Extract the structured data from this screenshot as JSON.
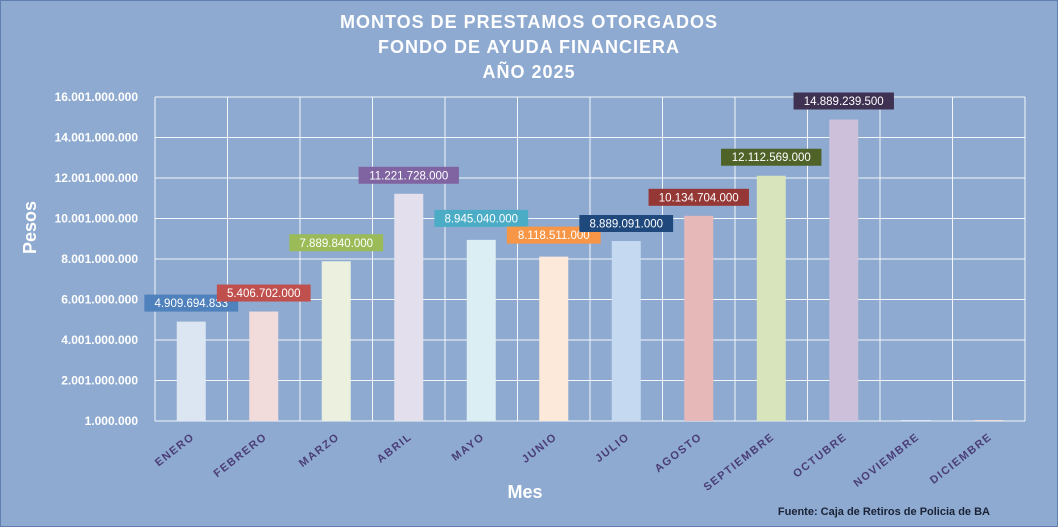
{
  "chart_data": {
    "type": "bar",
    "title": [
      "MONTOS DE PRESTAMOS OTORGADOS",
      "FONDO DE AYUDA FINANCIERA",
      "AÑO  2025"
    ],
    "xlabel": "Mes",
    "ylabel": "Pesos",
    "source": "Fuente: Caja de Retiros de Policia de BA",
    "ylim": [
      1000000,
      16001000000
    ],
    "yticks": [
      1000000,
      2001000000,
      4001000000,
      6001000000,
      8001000000,
      10001000000,
      12001000000,
      14001000000,
      16001000000
    ],
    "ytick_labels": [
      "1.000.000",
      "2.001.000.000",
      "4.001.000.000",
      "6.001.000.000",
      "8.001.000.000",
      "10.001.000.000",
      "12.001.000.000",
      "14.001.000.000",
      "16.001.000.000"
    ],
    "grid": true,
    "categories": [
      "ENERO",
      "FEBRERO",
      "MARZO",
      "ABRIL",
      "MAYO",
      "JUNIO",
      "JULIO",
      "AGOSTO",
      "SEPTIEMBRE",
      "OCTUBRE",
      "NOVIEMBRE",
      "DICIEMBRE"
    ],
    "values": [
      4909694833,
      5406702000,
      7889840000,
      11221728000,
      8945040000,
      8118511000,
      8889091000,
      10134704000,
      12112569000,
      14889239500,
      0,
      0
    ],
    "data_labels": [
      "4.909.694.833",
      "5.406.702.000",
      "7.889.840.000",
      "11.221.728.000",
      "8.945.040.000",
      "8.118.511.000",
      "8.889.091.000",
      "10.134.704.000",
      "12.112.569.000",
      "14.889.239.500",
      "",
      ""
    ],
    "bar_colors": [
      "#dce6f2",
      "#f2dcdb",
      "#ebf1de",
      "#e4dfec",
      "#daeef3",
      "#fde9d9",
      "#c5d9f1",
      "#e6b8b7",
      "#d8e4bc",
      "#ccc0da",
      "#dce6f2",
      "#f2dcdb"
    ],
    "label_colors": [
      "#4f81bd",
      "#c0504d",
      "#9bbb59",
      "#8064a2",
      "#4bacc6",
      "#f79646",
      "#1f497d",
      "#953735",
      "#4f6228",
      "#3f3151",
      "",
      ""
    ]
  }
}
